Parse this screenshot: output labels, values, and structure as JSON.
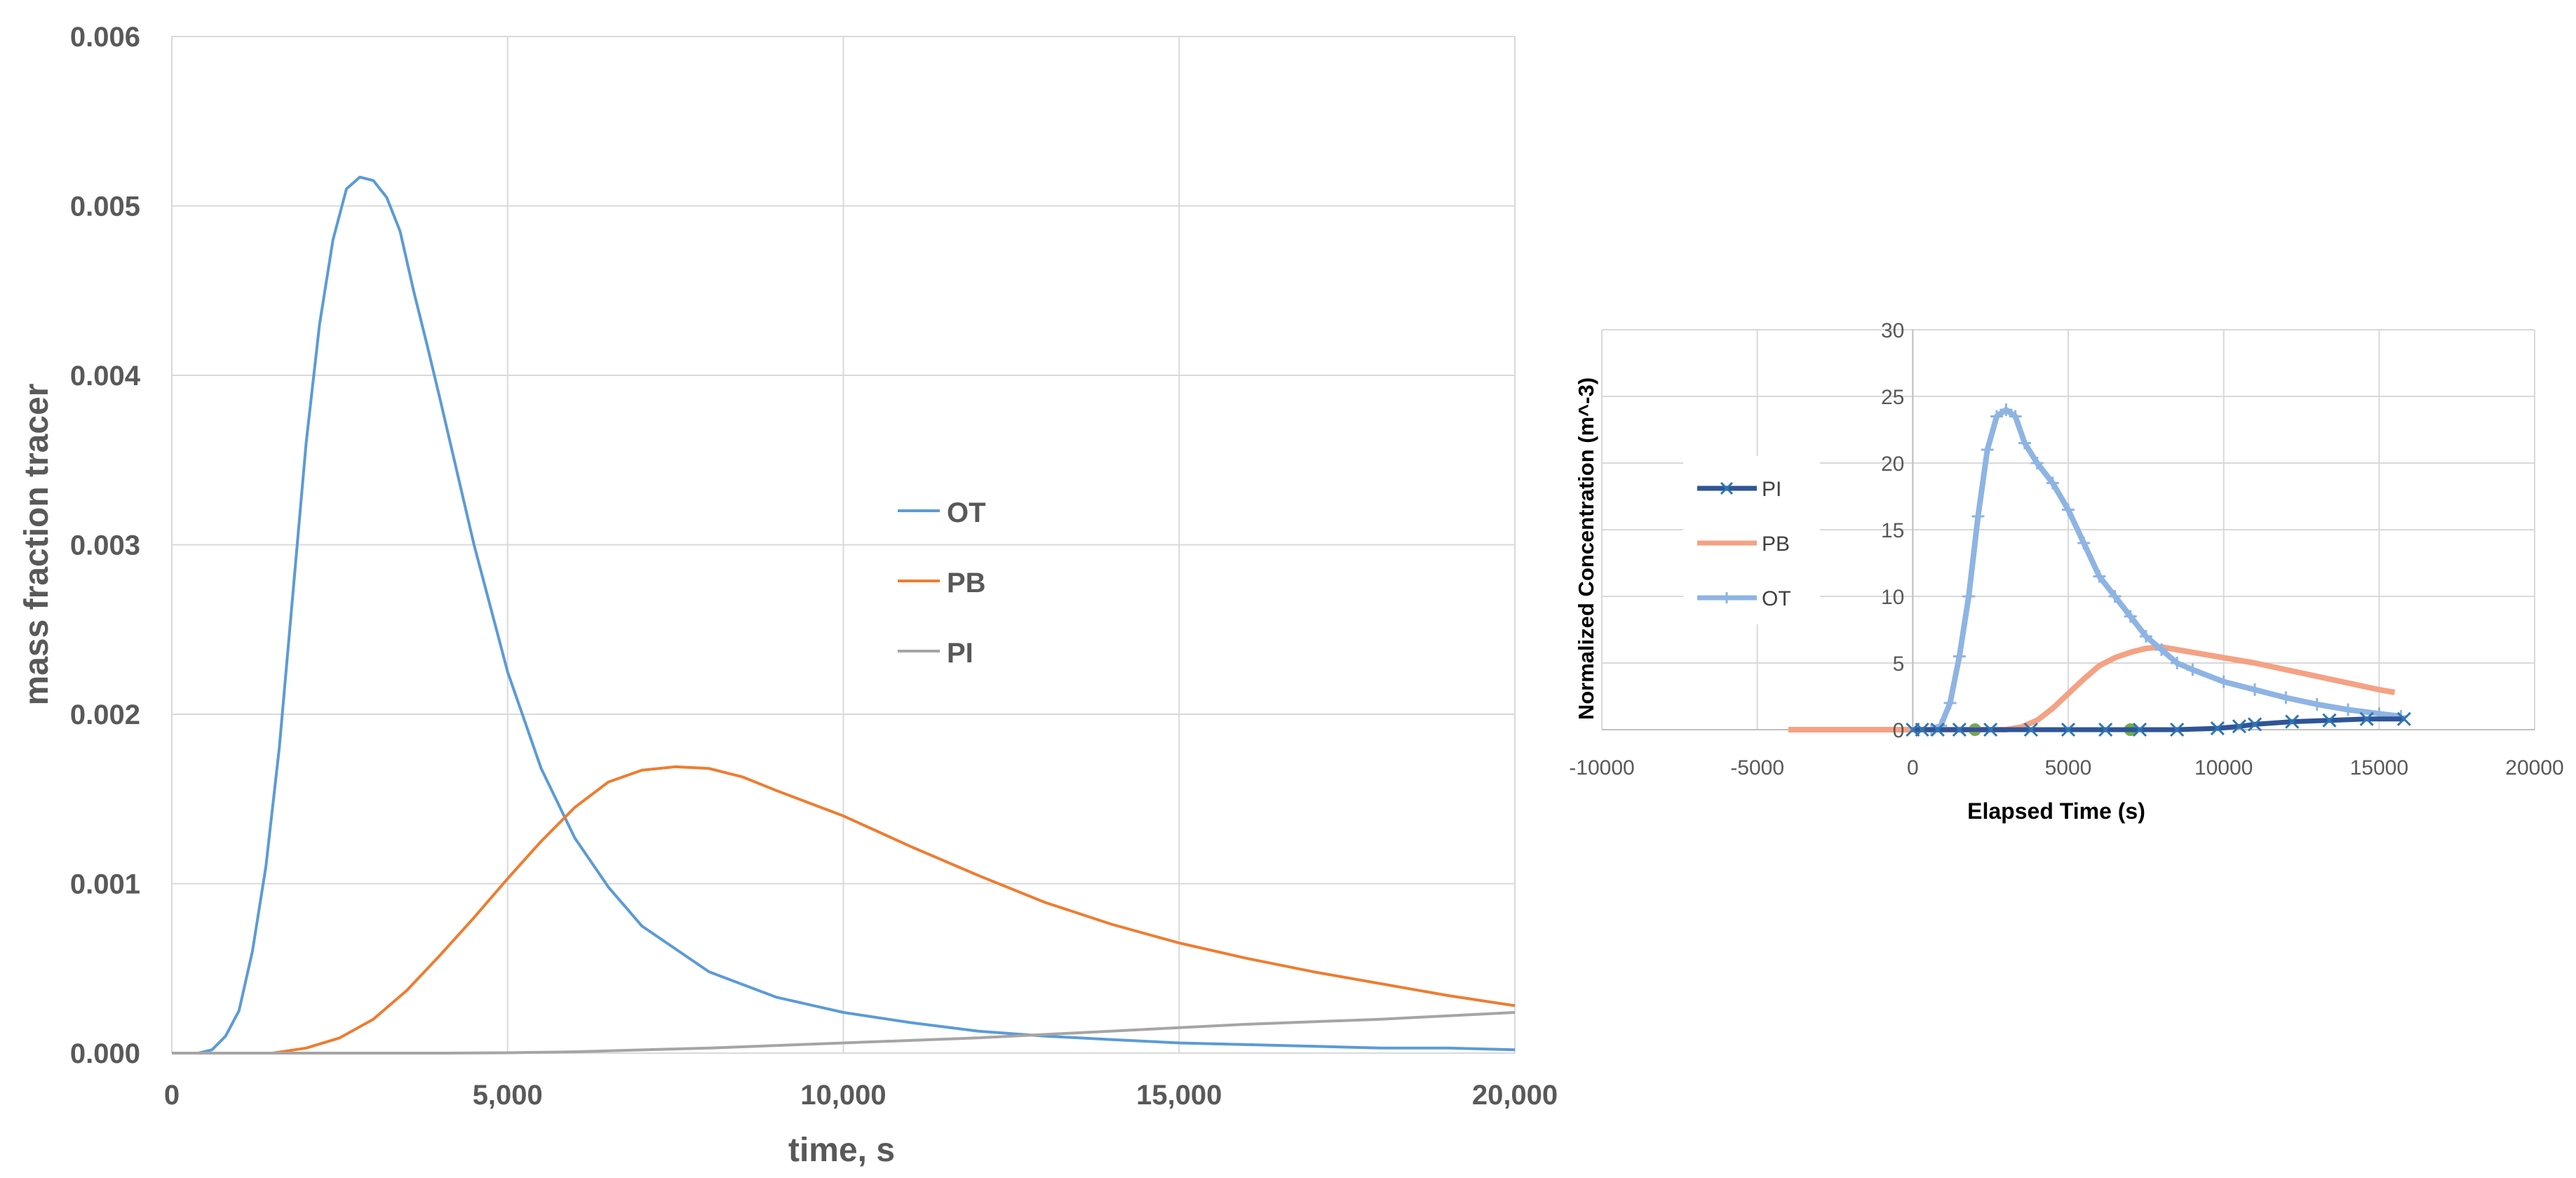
{
  "chart_data": [
    {
      "type": "line",
      "title": "",
      "xlabel": "time, s",
      "ylabel": "mass fraction tracer",
      "xlim": [
        0,
        20000
      ],
      "ylim": [
        0,
        0.006
      ],
      "x_ticks": [
        0,
        5000,
        10000,
        15000,
        20000
      ],
      "x_tick_labels": [
        "0",
        "5,000",
        "10,000",
        "15,000",
        "20,000"
      ],
      "y_ticks": [
        0,
        0.001,
        0.002,
        0.003,
        0.004,
        0.005,
        0.006
      ],
      "y_tick_labels": [
        "0.000",
        "0.001",
        "0.002",
        "0.003",
        "0.004",
        "0.005",
        "0.006"
      ],
      "grid": true,
      "legend_position": "center-right",
      "series": [
        {
          "name": "OT",
          "color": "#5B9BD5",
          "x": [
            0,
            400,
            600,
            800,
            1000,
            1200,
            1400,
            1600,
            1800,
            2000,
            2200,
            2400,
            2600,
            2800,
            3000,
            3200,
            3400,
            3600,
            3800,
            4000,
            4500,
            5000,
            5500,
            6000,
            6500,
            7000,
            8000,
            9000,
            10000,
            11000,
            12000,
            13000,
            14000,
            15000,
            16000,
            17000,
            18000,
            19000,
            20000
          ],
          "y": [
            0,
            0,
            2e-05,
            0.0001,
            0.00025,
            0.0006,
            0.0011,
            0.0018,
            0.0027,
            0.0036,
            0.0043,
            0.0048,
            0.0051,
            0.00517,
            0.00515,
            0.00505,
            0.00485,
            0.0045,
            0.00418,
            0.00385,
            0.003,
            0.00225,
            0.00168,
            0.00127,
            0.00098,
            0.00075,
            0.00048,
            0.00033,
            0.00024,
            0.00018,
            0.00013,
            0.0001,
            8e-05,
            6e-05,
            5e-05,
            4e-05,
            3e-05,
            3e-05,
            2e-05
          ]
        },
        {
          "name": "PB",
          "color": "#ED7D31",
          "x": [
            0,
            1500,
            2000,
            2500,
            3000,
            3500,
            4000,
            4500,
            5000,
            5500,
            6000,
            6500,
            7000,
            7500,
            8000,
            8500,
            9000,
            10000,
            11000,
            12000,
            13000,
            14000,
            15000,
            16000,
            17000,
            18000,
            19000,
            20000
          ],
          "y": [
            0,
            0,
            3e-05,
            9e-05,
            0.0002,
            0.00037,
            0.00058,
            0.0008,
            0.00103,
            0.00125,
            0.00145,
            0.0016,
            0.00167,
            0.00169,
            0.00168,
            0.00163,
            0.00155,
            0.0014,
            0.00122,
            0.00105,
            0.00089,
            0.00076,
            0.00065,
            0.00056,
            0.00048,
            0.00041,
            0.00034,
            0.00028
          ]
        },
        {
          "name": "PI",
          "color": "#A5A5A5",
          "x": [
            0,
            4000,
            5000,
            6000,
            8000,
            10000,
            12000,
            14000,
            16000,
            18000,
            20000
          ],
          "y": [
            0,
            0,
            2e-06,
            8e-06,
            3e-05,
            6e-05,
            9e-05,
            0.00013,
            0.00017,
            0.0002,
            0.00024
          ]
        }
      ]
    },
    {
      "type": "scatter",
      "title": "",
      "xlabel": "Elapsed Time (s)",
      "ylabel": "Normalized Concentration (m^-3)",
      "xlim": [
        -10000,
        20000
      ],
      "ylim": [
        0,
        30
      ],
      "x_ticks": [
        -10000,
        -5000,
        0,
        5000,
        10000,
        15000,
        20000
      ],
      "x_tick_labels": [
        "-10000",
        "-5000",
        "0",
        "5000",
        "10000",
        "15000",
        "20000"
      ],
      "y_ticks": [
        0,
        5,
        10,
        15,
        20,
        25,
        30
      ],
      "y_tick_labels": [
        "0",
        "5",
        "10",
        "15",
        "20",
        "25",
        "30"
      ],
      "grid": true,
      "legend_position": "left",
      "series": [
        {
          "name": "PI",
          "color": "#2F5597",
          "marker": "x",
          "x": [
            0,
            300,
            800,
            1500,
            2500,
            3800,
            5000,
            6200,
            7300,
            8500,
            9800,
            10500,
            11000,
            12200,
            13400,
            14600,
            15800
          ],
          "y": [
            0,
            0,
            0,
            0,
            0,
            0,
            0,
            0,
            0,
            0,
            0.1,
            0.25,
            0.4,
            0.6,
            0.7,
            0.8,
            0.8
          ]
        },
        {
          "name": "PB",
          "color": "#F4A284",
          "marker": "none",
          "x": [
            -4000,
            0,
            3000,
            3500,
            4000,
            4500,
            5000,
            5500,
            6000,
            6500,
            7000,
            7500,
            8000,
            8500,
            9000,
            10000,
            11000,
            12000,
            13000,
            14000,
            15000,
            15500
          ],
          "y": [
            0,
            0,
            0,
            0.2,
            0.7,
            1.6,
            2.7,
            3.8,
            4.8,
            5.4,
            5.8,
            6.1,
            6.2,
            6.0,
            5.8,
            5.4,
            5.0,
            4.5,
            4.0,
            3.5,
            3.0,
            2.8
          ]
        },
        {
          "name": "OT",
          "color": "#8EB4E3",
          "marker": "+",
          "x": [
            600,
            900,
            1200,
            1500,
            1800,
            2100,
            2400,
            2700,
            3000,
            3300,
            3600,
            4000,
            4500,
            5000,
            5500,
            6000,
            6500,
            7000,
            7500,
            8000,
            8500,
            9000,
            10000,
            11000,
            12000,
            13000,
            14000,
            15000,
            15700
          ],
          "y": [
            0,
            0.3,
            2,
            5.5,
            10,
            16,
            21,
            23.5,
            24,
            23.5,
            21.5,
            20,
            18.5,
            16.5,
            14,
            11.5,
            10,
            8.5,
            7,
            6,
            5,
            4.5,
            3.6,
            3,
            2.4,
            1.9,
            1.5,
            1.2,
            1.0
          ]
        },
        {
          "name": "",
          "color": "#70AD47",
          "marker": "dot",
          "x": [
            2000,
            7000
          ],
          "y": [
            0,
            0
          ]
        }
      ]
    }
  ]
}
